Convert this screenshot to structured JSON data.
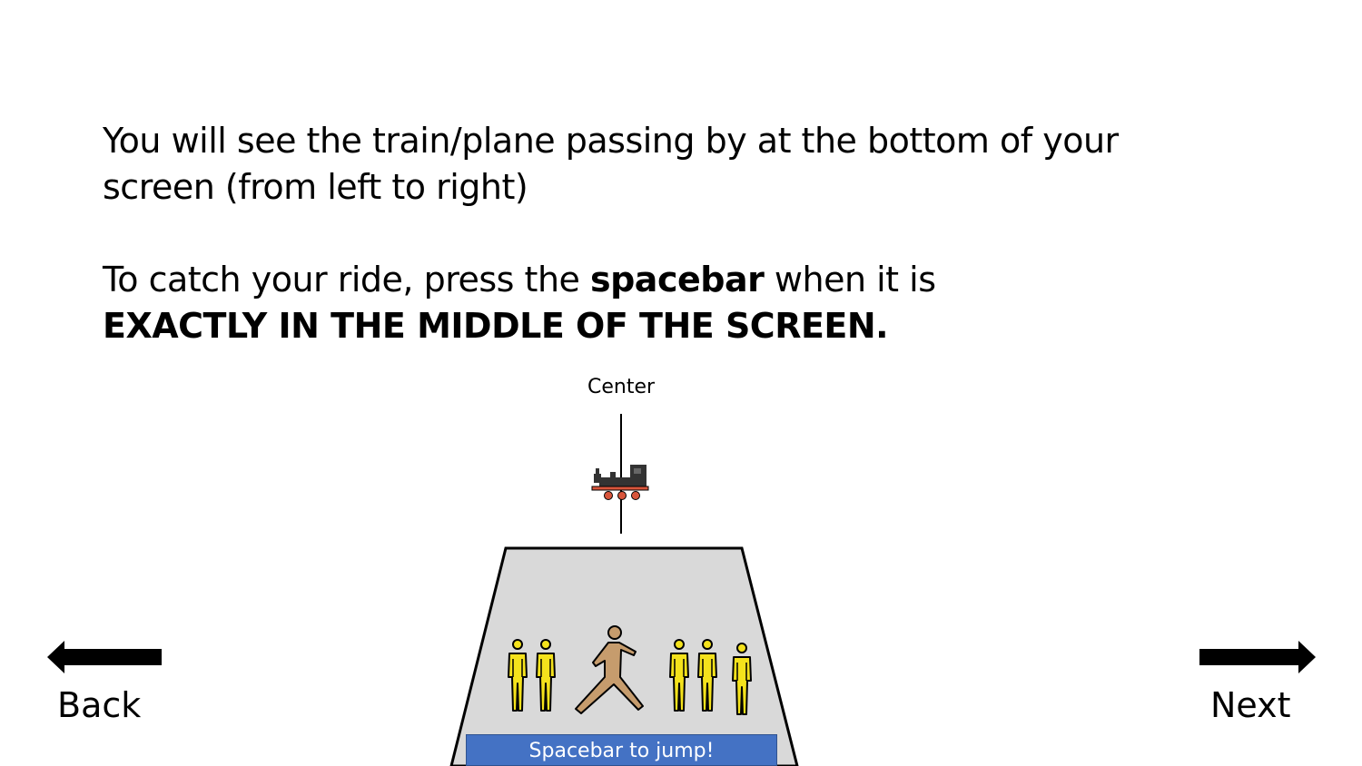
{
  "instructions": {
    "line1": "You will see the train/plane passing by at the bottom of your screen (from left to right)",
    "line2_prefix": "To catch your ride, press the ",
    "line2_bold": "spacebar",
    "line2_suffix": " when it is",
    "line3_bold": "EXACTLY IN THE MIDDLE OF THE SCREEN."
  },
  "scene": {
    "center_label": "Center",
    "jump_label": "Spacebar to jump!"
  },
  "navigation": {
    "back_label": "Back",
    "next_label": "Next"
  },
  "colors": {
    "platform_fill": "#d9d9d9",
    "banner_fill": "#4472c4",
    "crowd_yellow": "#f4e21c",
    "jumper_tan": "#c69c6d",
    "train_body": "#333333",
    "train_wheels": "#d8553b"
  },
  "icons": [
    "train-icon",
    "person-icon",
    "jumping-person-icon",
    "arrow-left-icon",
    "arrow-right-icon"
  ]
}
